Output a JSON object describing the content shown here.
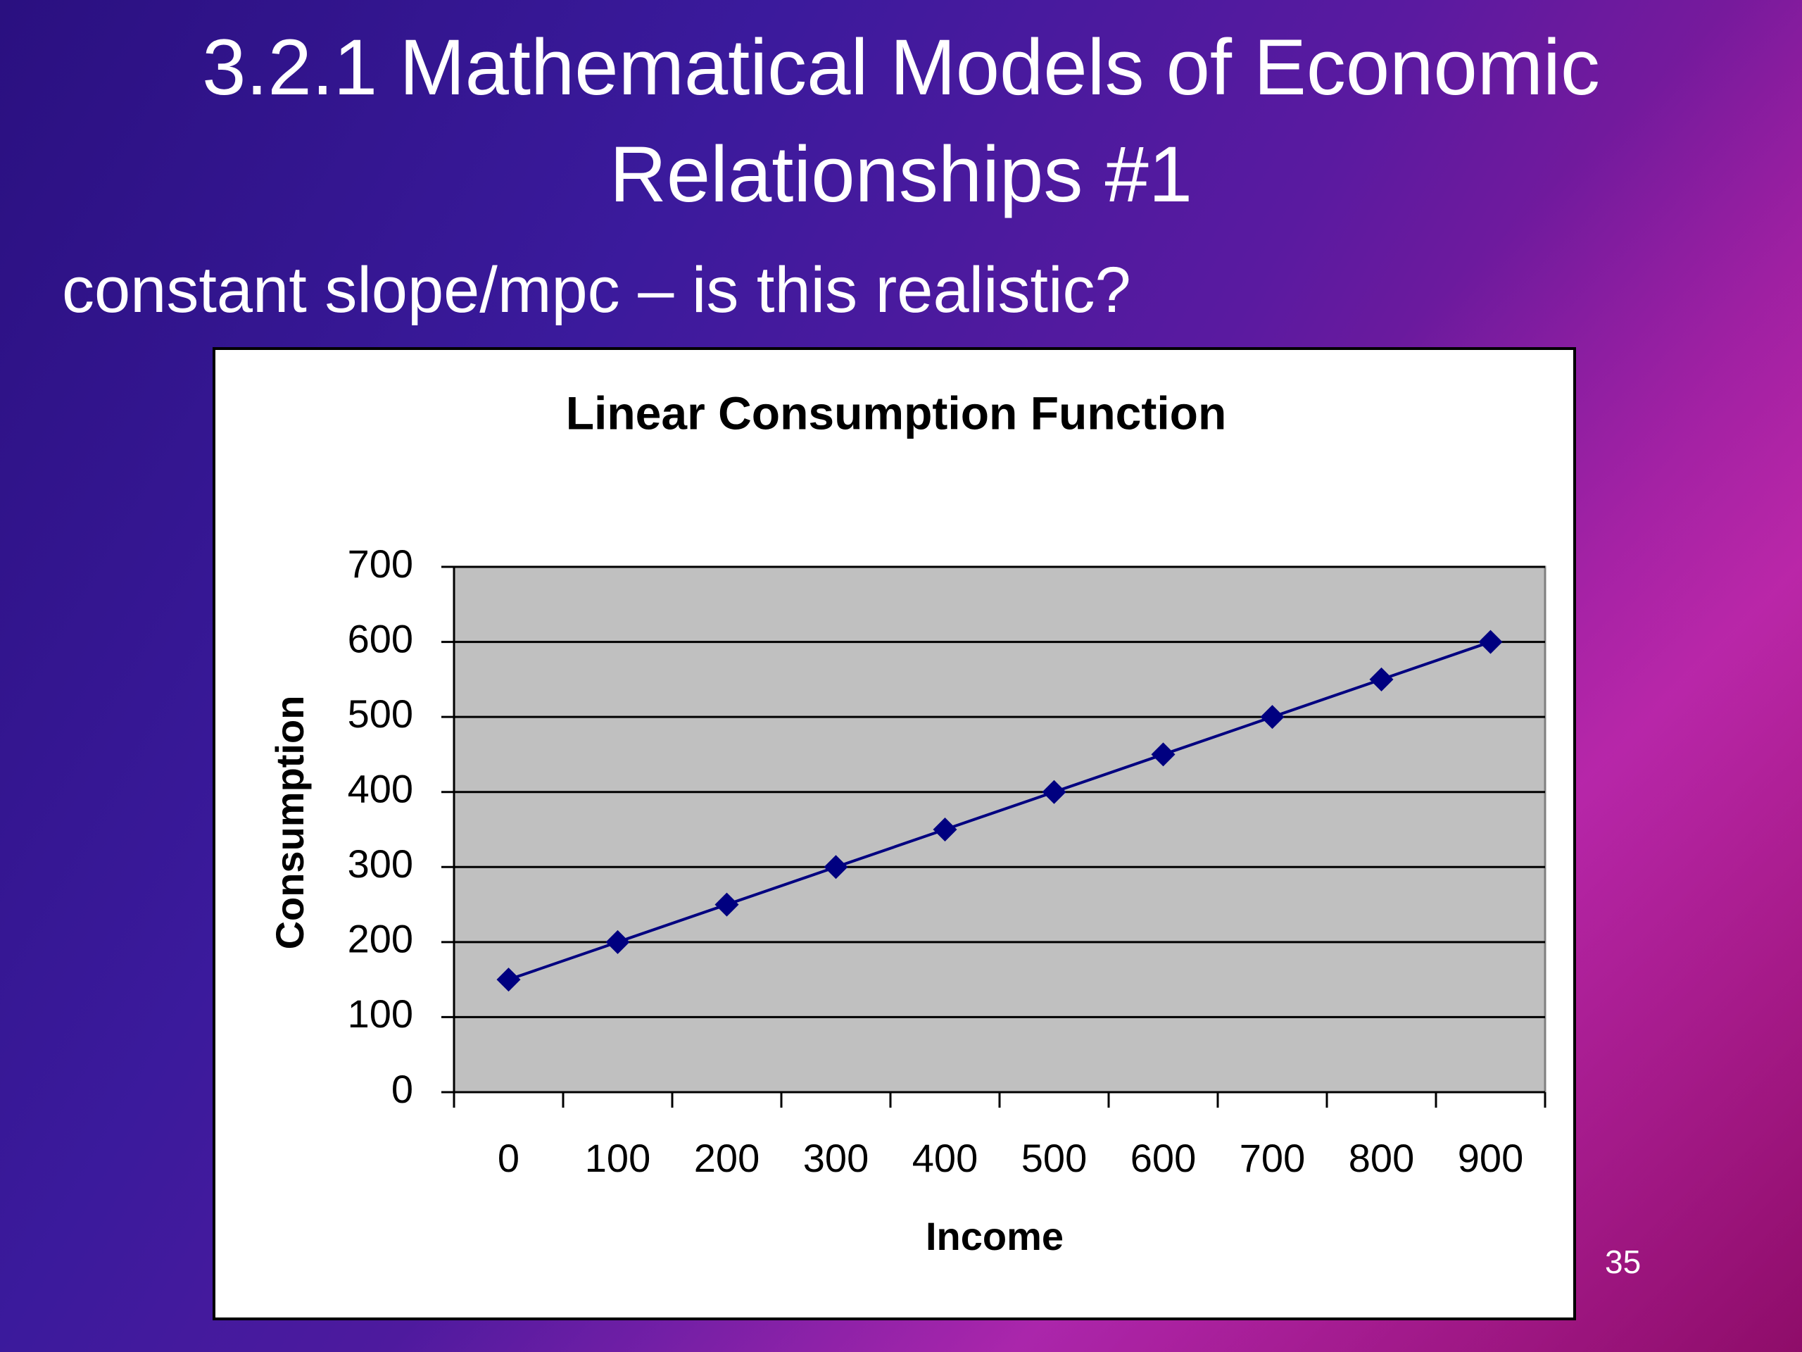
{
  "slide": {
    "title": "3.2.1 Mathematical Models of Economic Relationships #1",
    "text": "constant slope/mpc – is this realistic?",
    "page_number": 35
  },
  "chart_data": {
    "type": "line",
    "title": "Linear Consumption Function",
    "x_label": "Income",
    "y_label": "Consumption",
    "categories": [
      0,
      100,
      200,
      300,
      400,
      500,
      600,
      700,
      800,
      900
    ],
    "series": [
      {
        "color": "#000080",
        "values": [
          150,
          200,
          250,
          300,
          350,
          400,
          450,
          500,
          550,
          600
        ]
      }
    ],
    "ylim": [
      0,
      700
    ],
    "yticks": [
      0,
      100,
      200,
      300,
      400,
      500,
      600,
      700
    ],
    "grid": true
  }
}
